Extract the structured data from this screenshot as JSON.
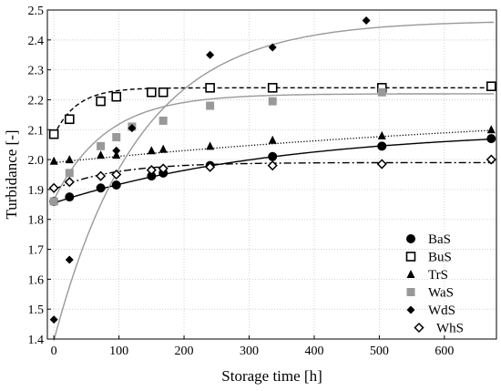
{
  "chart_data": {
    "type": "scatter",
    "xlabel": "Storage time [h]",
    "ylabel": "Turbidance [-]",
    "xlim": [
      -10,
      680
    ],
    "ylim": [
      1.4,
      2.5
    ],
    "xticks": [
      0,
      100,
      200,
      300,
      400,
      500,
      600
    ],
    "yticks": [
      1.4,
      1.5,
      1.6,
      1.7,
      1.8,
      1.9,
      2.0,
      2.1,
      2.2,
      2.3,
      2.4,
      2.5
    ],
    "xtick_labels": [
      "0",
      "100",
      "200",
      "300",
      "400",
      "500",
      "600"
    ],
    "ytick_labels": [
      "1.4",
      "1.5",
      "1.6",
      "1.7",
      "1.8",
      "1.9",
      "2.0",
      "2.1",
      "2.2",
      "2.3",
      "2.4",
      "2.5"
    ],
    "grid": true,
    "legend_position": "bottom-right",
    "series": [
      {
        "name": "BaS",
        "marker": "circle",
        "color": "#000000",
        "line": "solid",
        "x": [
          0,
          24,
          72,
          96,
          150,
          168,
          240,
          336,
          504,
          672
        ],
        "y": [
          1.86,
          1.875,
          1.905,
          1.915,
          1.945,
          1.955,
          1.98,
          2.01,
          2.045,
          2.07
        ],
        "fit": {
          "a": 1.855,
          "b": 0.25,
          "c": 350
        }
      },
      {
        "name": "BuS",
        "marker": "square-open",
        "color": "#000000",
        "line": "dashed",
        "x": [
          0,
          24,
          72,
          96,
          150,
          168,
          240,
          336,
          504,
          672
        ],
        "y": [
          2.085,
          2.135,
          2.195,
          2.21,
          2.225,
          2.225,
          2.24,
          2.24,
          2.24,
          2.245
        ],
        "fit": {
          "a": 2.08,
          "b": 0.16,
          "c": 35
        }
      },
      {
        "name": "TrS",
        "marker": "triangle",
        "color": "#000000",
        "line": "dotted",
        "x": [
          0,
          24,
          72,
          96,
          150,
          168,
          240,
          336,
          504,
          672
        ],
        "y": [
          1.995,
          2.0,
          2.015,
          2.015,
          2.03,
          2.035,
          2.045,
          2.065,
          2.08,
          2.1
        ],
        "fit": {
          "a": 1.99,
          "b": 0.22,
          "c": 1000
        }
      },
      {
        "name": "WaS",
        "marker": "square-filled",
        "color": "#999999",
        "line": "solid",
        "x": [
          0,
          24,
          72,
          96,
          120,
          168,
          240,
          336,
          504
        ],
        "y": [
          1.86,
          1.955,
          2.045,
          2.075,
          2.11,
          2.13,
          2.18,
          2.195,
          2.225
        ],
        "fit": {
          "a": 1.865,
          "b": 0.355,
          "c": 80
        }
      },
      {
        "name": "WdS",
        "marker": "diamond-filled",
        "color": "#000000",
        "line": "solid",
        "line_color": "#999999",
        "x": [
          0,
          24,
          96,
          120,
          240,
          336,
          480
        ],
        "y": [
          1.465,
          1.665,
          2.03,
          2.105,
          2.35,
          2.375,
          2.465
        ],
        "fit": {
          "a": 1.395,
          "b": 1.07,
          "c": 130
        }
      },
      {
        "name": "WhS",
        "marker": "diamond-open",
        "color": "#000000",
        "line": "dashdot",
        "x": [
          0,
          24,
          72,
          96,
          150,
          168,
          240,
          336,
          504,
          672
        ],
        "y": [
          1.905,
          1.925,
          1.945,
          1.95,
          1.965,
          1.97,
          1.975,
          1.98,
          1.985,
          2.0
        ],
        "fit": {
          "a": 1.9,
          "b": 0.09,
          "c": 90
        }
      }
    ]
  }
}
